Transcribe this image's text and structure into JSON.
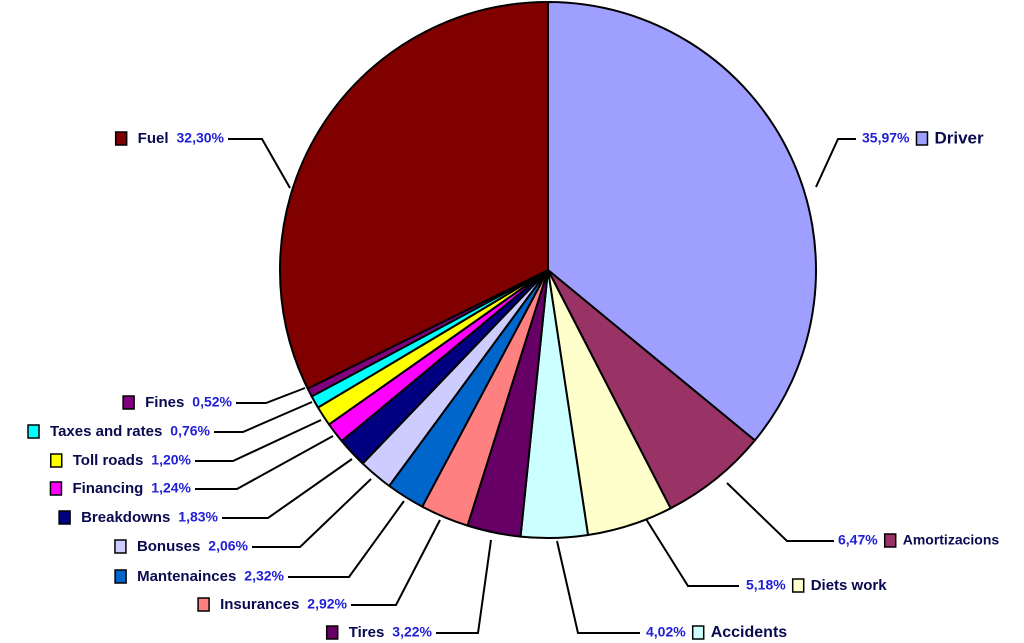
{
  "chart_data": {
    "type": "pie",
    "title": "",
    "slices": [
      {
        "name": "Driver",
        "label": "35,97%",
        "value": 35.97,
        "color": "#9f9fff"
      },
      {
        "name": "Amortizacions",
        "label": "6,47%",
        "value": 6.47,
        "color": "#993366"
      },
      {
        "name": "Diets work",
        "label": "5,18%",
        "value": 5.18,
        "color": "#ffffcc"
      },
      {
        "name": "Accidents",
        "label": "4,02%",
        "value": 4.02,
        "color": "#ccffff"
      },
      {
        "name": "Tires",
        "label": "3,22%",
        "value": 3.22,
        "color": "#660066"
      },
      {
        "name": "Insurances",
        "label": "2,92%",
        "value": 2.92,
        "color": "#ff8080"
      },
      {
        "name": "Mantenainces",
        "label": "2,32%",
        "value": 2.32,
        "color": "#0066cc"
      },
      {
        "name": "Bonuses",
        "label": "2,06%",
        "value": 2.06,
        "color": "#ccccff"
      },
      {
        "name": "Breakdowns",
        "label": "1,83%",
        "value": 1.83,
        "color": "#000080"
      },
      {
        "name": "Financing",
        "label": "1,24%",
        "value": 1.24,
        "color": "#ff00ff"
      },
      {
        "name": "Toll roads",
        "label": "1,20%",
        "value": 1.2,
        "color": "#ffff00"
      },
      {
        "name": "Taxes and rates",
        "label": "0,76%",
        "value": 0.76,
        "color": "#00ffff"
      },
      {
        "name": "Fines",
        "label": "0,52%",
        "value": 0.52,
        "color": "#800080"
      },
      {
        "name": "Fuel",
        "label": "32,30%",
        "value": 32.3,
        "color": "#800000"
      }
    ]
  }
}
